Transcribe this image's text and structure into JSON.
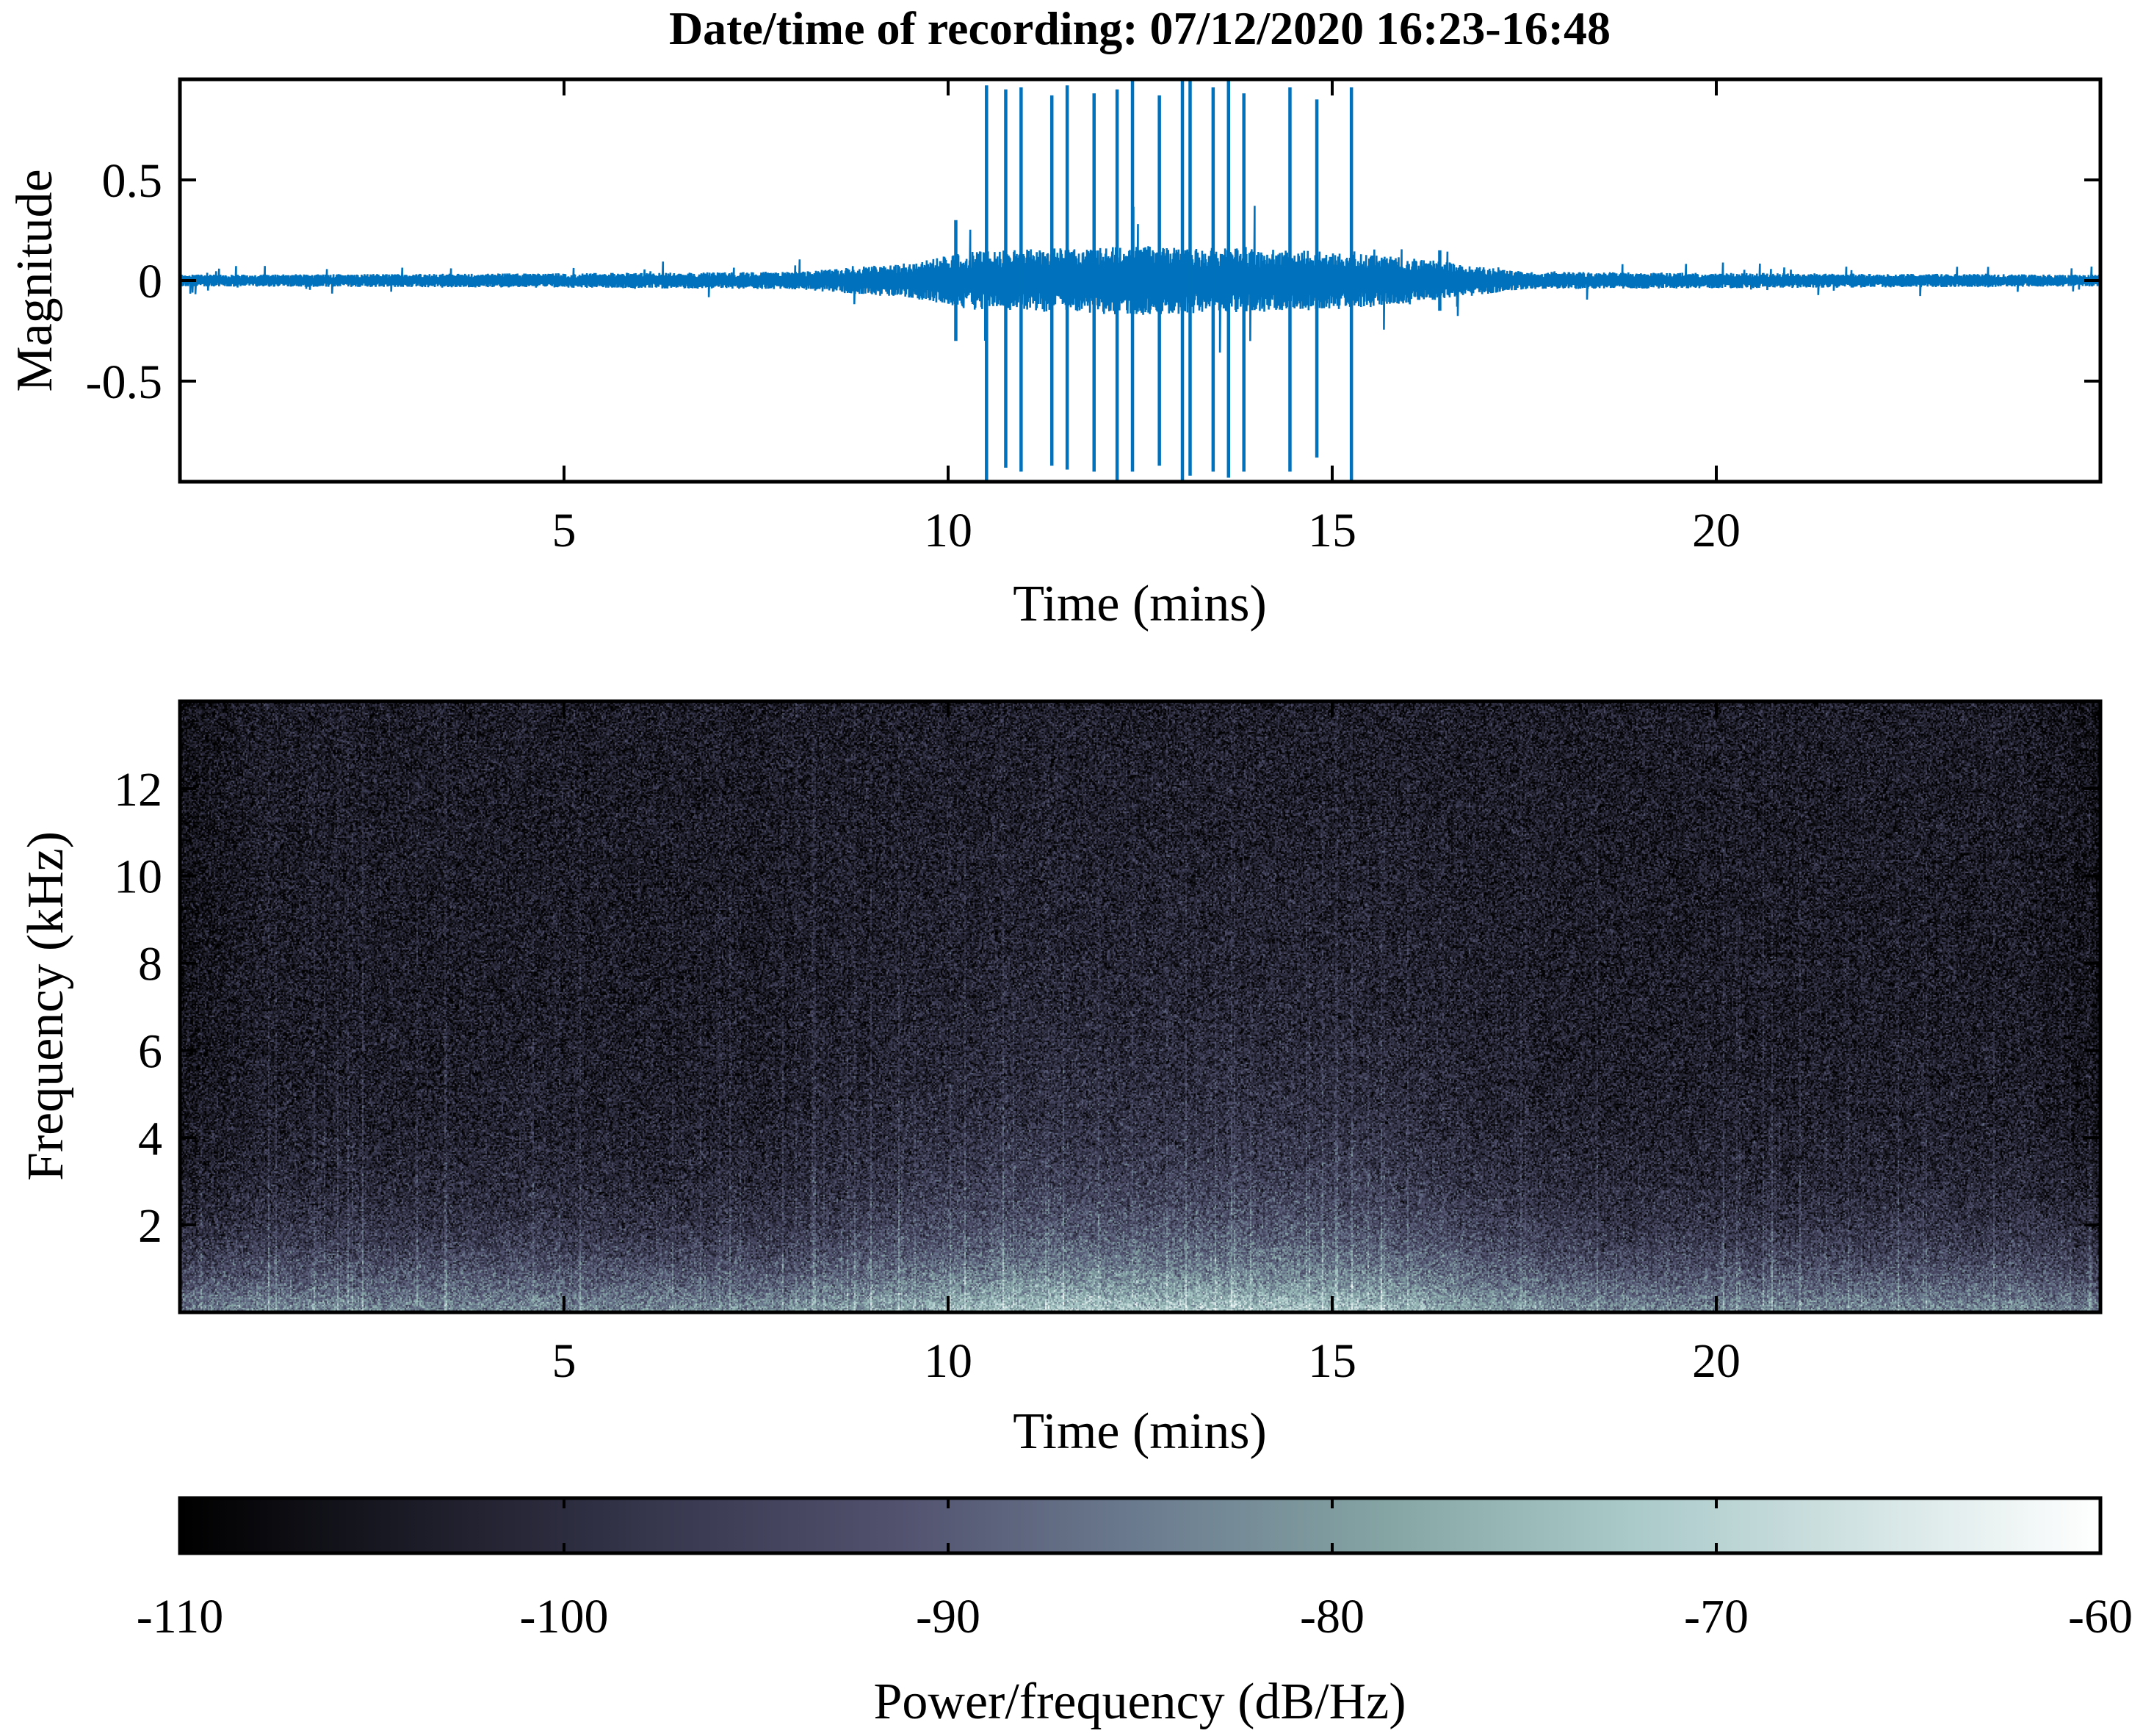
{
  "chart_data": [
    {
      "type": "line",
      "title": "Date/time of recording: 07/12/2020 16:23-16:48",
      "xlabel": "Time (mins)",
      "ylabel": "Magnitude",
      "xlim": [
        0,
        25
      ],
      "ylim": [
        -1,
        1
      ],
      "xticks": [
        5,
        10,
        15,
        20
      ],
      "xtick_labels": [
        "5",
        "10",
        "15",
        "20"
      ],
      "yticks": [
        0.5,
        0,
        -0.5
      ],
      "ytick_labels": [
        "0.5",
        "0",
        "-0.5"
      ],
      "grid": false,
      "color": "#0072BD",
      "series": [
        {
          "noise_envelope": [
            [
              0,
              0.02
            ],
            [
              5,
              0.025
            ],
            [
              8,
              0.03
            ],
            [
              9.5,
              0.06
            ],
            [
              10.3,
              0.1
            ],
            [
              12.5,
              0.12
            ],
            [
              15,
              0.1
            ],
            [
              16.3,
              0.07
            ],
            [
              17.5,
              0.03
            ],
            [
              25,
              0.02
            ]
          ],
          "spikes": [
            {
              "x": 10.1,
              "min": -0.3,
              "max": 0.3
            },
            {
              "x": 10.5,
              "min": -1.0,
              "max": 0.97
            },
            {
              "x": 10.75,
              "min": -0.93,
              "max": 0.95
            },
            {
              "x": 10.95,
              "min": -0.95,
              "max": 0.96
            },
            {
              "x": 11.35,
              "min": -0.92,
              "max": 0.92
            },
            {
              "x": 11.55,
              "min": -0.94,
              "max": 0.97
            },
            {
              "x": 11.9,
              "min": -0.95,
              "max": 0.93
            },
            {
              "x": 12.2,
              "min": -1.0,
              "max": 0.95
            },
            {
              "x": 12.4,
              "min": -0.95,
              "max": 1.0
            },
            {
              "x": 12.75,
              "min": -0.92,
              "max": 0.92
            },
            {
              "x": 13.05,
              "min": -1.0,
              "max": 1.0
            },
            {
              "x": 13.15,
              "min": -0.97,
              "max": 1.0
            },
            {
              "x": 13.45,
              "min": -0.95,
              "max": 0.96
            },
            {
              "x": 13.65,
              "min": -0.98,
              "max": 1.0
            },
            {
              "x": 13.85,
              "min": -0.95,
              "max": 0.93
            },
            {
              "x": 14.45,
              "min": -0.95,
              "max": 0.96
            },
            {
              "x": 14.8,
              "min": -0.88,
              "max": 0.9
            },
            {
              "x": 15.25,
              "min": -1.0,
              "max": 0.96
            },
            {
              "x": 16.4,
              "min": -0.15,
              "max": 0.15
            }
          ]
        }
      ]
    },
    {
      "type": "heatmap",
      "xlabel": "Time (mins)",
      "ylabel": "Frequency (kHz)",
      "xlim": [
        0,
        25
      ],
      "ylim": [
        0,
        14
      ],
      "xticks": [
        5,
        10,
        15,
        20
      ],
      "xtick_labels": [
        "5",
        "10",
        "15",
        "20"
      ],
      "yticks": [
        2,
        4,
        6,
        8,
        10,
        12
      ],
      "ytick_labels": [
        "2",
        "4",
        "6",
        "8",
        "10",
        "12"
      ],
      "power_db_model": {
        "background": -104,
        "low_freq_peak": -70,
        "activity_window_mins": [
          9,
          17
        ],
        "activity_boost_db": 10
      }
    },
    {
      "type": "colorbar",
      "label": "Power/frequency (dB/Hz)",
      "range": [
        -110,
        -60
      ],
      "ticks": [
        -110,
        -100,
        -90,
        -80,
        -70,
        -60
      ],
      "tick_labels": [
        "-110",
        "-100",
        "-90",
        "-80",
        "-70",
        "-60"
      ],
      "colormap": [
        "#000000",
        "#1c1c28",
        "#37374e",
        "#52526f",
        "#6b7b8f",
        "#84a3a3",
        "#a8c8c8",
        "#d2e3e3",
        "#ffffff"
      ]
    }
  ]
}
